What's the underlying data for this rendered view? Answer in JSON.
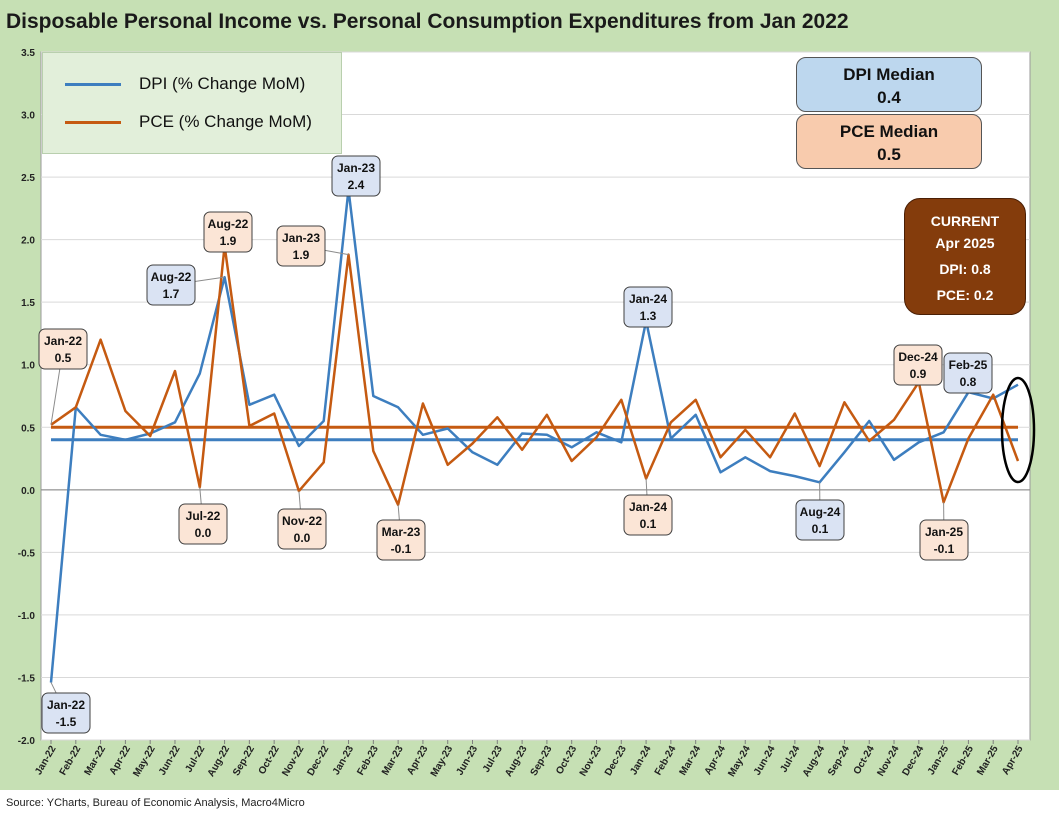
{
  "title": "Disposable Personal Income vs. Personal Consumption Expenditures from Jan 2022",
  "source": "Source: YCharts, Bureau of Economic Analysis, Macro4Micro",
  "colors": {
    "dpi": "#3d7ebf",
    "pce": "#c55a11",
    "background": "#c6e0b4",
    "current_box": "#843c0c"
  },
  "legend": {
    "dpi": "DPI (% Change MoM)",
    "pce": "PCE (% Change MoM)"
  },
  "median_boxes": {
    "dpi": {
      "label": "DPI Median",
      "value": "0.4"
    },
    "pce": {
      "label": "PCE Median",
      "value": "0.5"
    }
  },
  "current_box": {
    "heading": "CURRENT",
    "period": "Apr 2025",
    "dpi": "DPI:  0.8",
    "pce": "PCE:  0.2"
  },
  "chart_data": {
    "type": "line",
    "ylim": [
      -2.0,
      3.5
    ],
    "yticks": [
      "3.5",
      "3.0",
      "2.5",
      "2.0",
      "1.5",
      "1.0",
      "0.5",
      "0.0",
      "-0.5",
      "-1.0",
      "-1.5",
      "-2.0"
    ],
    "grid": "horizontal",
    "legend_position": "top-left",
    "categories": [
      "Jan-22",
      "Feb-22",
      "Mar-22",
      "Apr-22",
      "May-22",
      "Jun-22",
      "Jul-22",
      "Aug-22",
      "Sep-22",
      "Oct-22",
      "Nov-22",
      "Dec-22",
      "Jan-23",
      "Feb-23",
      "Mar-23",
      "Apr-23",
      "May-23",
      "Jun-23",
      "Jul-23",
      "Aug-23",
      "Sep-23",
      "Oct-23",
      "Nov-23",
      "Dec-23",
      "Jan-24",
      "Feb-24",
      "Mar-24",
      "Apr-24",
      "May-24",
      "Jun-24",
      "Jul-24",
      "Aug-24",
      "Sep-24",
      "Oct-24",
      "Nov-24",
      "Dec-24",
      "Jan-25",
      "Feb-25",
      "Mar-25",
      "Apr-25"
    ],
    "series": [
      {
        "name": "DPI (% Change MoM)",
        "color": "#3d7ebf",
        "values": [
          -1.54,
          0.66,
          0.44,
          0.4,
          0.45,
          0.54,
          0.93,
          1.7,
          0.68,
          0.76,
          0.35,
          0.55,
          2.4,
          0.75,
          0.66,
          0.44,
          0.49,
          0.3,
          0.2,
          0.45,
          0.44,
          0.34,
          0.46,
          0.38,
          1.35,
          0.41,
          0.6,
          0.14,
          0.26,
          0.15,
          0.11,
          0.06,
          0.3,
          0.55,
          0.24,
          0.38,
          0.46,
          0.78,
          0.73,
          0.84
        ],
        "median": 0.4
      },
      {
        "name": "PCE (% Change MoM)",
        "color": "#c55a11",
        "values": [
          0.52,
          0.66,
          1.2,
          0.63,
          0.43,
          0.95,
          0.02,
          1.95,
          0.51,
          0.61,
          -0.01,
          0.22,
          1.88,
          0.31,
          -0.12,
          0.69,
          0.2,
          0.37,
          0.58,
          0.32,
          0.6,
          0.23,
          0.42,
          0.72,
          0.09,
          0.54,
          0.72,
          0.26,
          0.48,
          0.26,
          0.61,
          0.19,
          0.7,
          0.39,
          0.56,
          0.86,
          -0.1,
          0.41,
          0.76,
          0.23
        ],
        "median": 0.5
      }
    ],
    "annotations": [
      {
        "series": "PCE (% Change MoM)",
        "category": "Jan-22",
        "label": "Jan-22",
        "value": "0.5"
      },
      {
        "series": "DPI (% Change MoM)",
        "category": "Jan-22",
        "label": "Jan-22",
        "value": "-1.5"
      },
      {
        "series": "DPI (% Change MoM)",
        "category": "Aug-22",
        "label": "Aug-22",
        "value": "1.7"
      },
      {
        "series": "PCE (% Change MoM)",
        "category": "Aug-22",
        "label": "Aug-22",
        "value": "1.9"
      },
      {
        "series": "PCE (% Change MoM)",
        "category": "Jul-22",
        "label": "Jul-22",
        "value": "0.0"
      },
      {
        "series": "PCE (% Change MoM)",
        "category": "Nov-22",
        "label": "Nov-22",
        "value": "0.0"
      },
      {
        "series": "PCE (% Change MoM)",
        "category": "Jan-23",
        "label": "Jan-23",
        "value": "1.9"
      },
      {
        "series": "DPI (% Change MoM)",
        "category": "Jan-23",
        "label": "Jan-23",
        "value": "2.4"
      },
      {
        "series": "PCE (% Change MoM)",
        "category": "Mar-23",
        "label": "Mar-23",
        "value": "-0.1"
      },
      {
        "series": "DPI (% Change MoM)",
        "category": "Jan-24",
        "label": "Jan-24",
        "value": "1.3"
      },
      {
        "series": "PCE (% Change MoM)",
        "category": "Jan-24",
        "label": "Jan-24",
        "value": "0.1"
      },
      {
        "series": "DPI (% Change MoM)",
        "category": "Aug-24",
        "label": "Aug-24",
        "value": "0.1"
      },
      {
        "series": "PCE (% Change MoM)",
        "category": "Dec-24",
        "label": "Dec-24",
        "value": "0.9"
      },
      {
        "series": "PCE (% Change MoM)",
        "category": "Jan-25",
        "label": "Jan-25",
        "value": "-0.1"
      },
      {
        "series": "DPI (% Change MoM)",
        "category": "Feb-25",
        "label": "Feb-25",
        "value": "0.8"
      }
    ]
  }
}
